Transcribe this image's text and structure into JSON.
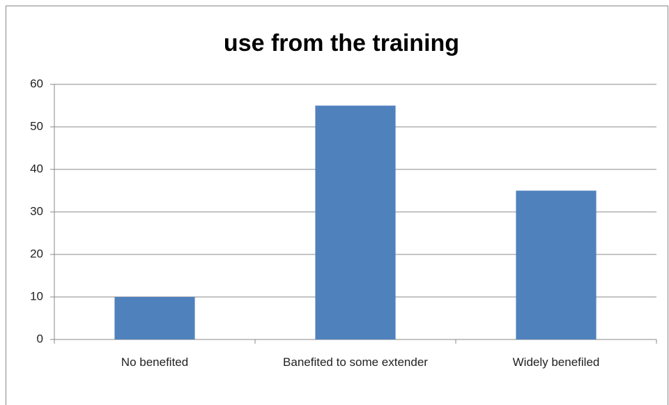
{
  "chart_data": {
    "type": "bar",
    "title": "use from the training",
    "categories": [
      "No benefited",
      "Banefited to some extender",
      "Widely benefiled"
    ],
    "values": [
      10,
      55,
      35
    ],
    "color": "#4f81bd",
    "ylim": [
      0,
      60
    ],
    "yticks": [
      0,
      10,
      20,
      30,
      40,
      50,
      60
    ],
    "grid": true
  }
}
